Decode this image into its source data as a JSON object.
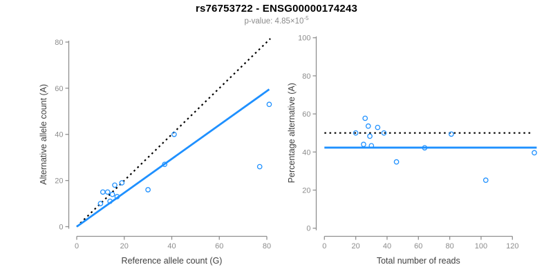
{
  "header": {
    "title": "rs76753722 - ENSG00000174243",
    "pvalue_prefix": "p-value: 4.85×10",
    "pvalue_exponent": "-5"
  },
  "colors": {
    "accent_blue": "#1E90FF",
    "dotted_black": "#000000",
    "axis_line": "#909090",
    "tick_label": "#8c8c8c",
    "axis_title": "#404040",
    "title_text": "#000000",
    "subtitle_text": "#8a8a8a"
  },
  "chart_data": [
    {
      "type": "scatter",
      "name": "allele-counts",
      "xlabel": "Reference allele count (G)",
      "ylabel": "Alternative allele count (A)",
      "xlim": [
        0,
        81.5
      ],
      "ylim": [
        0,
        81.5
      ],
      "xticks": [
        0,
        20,
        40,
        60,
        80
      ],
      "yticks": [
        0,
        20,
        40,
        60,
        80
      ],
      "grid": false,
      "legend": "none",
      "points": [
        [
          10,
          10
        ],
        [
          11,
          15
        ],
        [
          13,
          15
        ],
        [
          14,
          11
        ],
        [
          15,
          14
        ],
        [
          16,
          18
        ],
        [
          17,
          13
        ],
        [
          19,
          19
        ],
        [
          30,
          16
        ],
        [
          37,
          27
        ],
        [
          41,
          40
        ],
        [
          77,
          26
        ],
        [
          81,
          53
        ]
      ],
      "lines": [
        {
          "name": "identity-line",
          "style": "dotted",
          "color": "#000000",
          "x1": 0,
          "y1": 0,
          "x2": 81.5,
          "y2": 81.5
        },
        {
          "name": "fit-line",
          "style": "solid",
          "color": "#1E90FF",
          "x1": 0,
          "y1": 0,
          "x2": 81,
          "y2": 59.5
        }
      ]
    },
    {
      "type": "scatter",
      "name": "percentage-vs-reads",
      "xlabel": "Total number of reads",
      "ylabel": "Percentage alternative (A)",
      "xlim": [
        0,
        135.5
      ],
      "ylim": [
        0,
        100
      ],
      "xticks": [
        0,
        20,
        40,
        60,
        80,
        100,
        120
      ],
      "yticks": [
        0,
        20,
        40,
        60,
        80,
        100
      ],
      "grid": false,
      "legend": "none",
      "points": [
        [
          20,
          50.0
        ],
        [
          25,
          44.0
        ],
        [
          26,
          57.7
        ],
        [
          28,
          53.6
        ],
        [
          29,
          48.3
        ],
        [
          30,
          43.3
        ],
        [
          34,
          52.9
        ],
        [
          38,
          50.0
        ],
        [
          46,
          34.8
        ],
        [
          64,
          42.2
        ],
        [
          81,
          49.4
        ],
        [
          103,
          25.2
        ],
        [
          134,
          39.6
        ]
      ],
      "lines": [
        {
          "name": "null-50pct-line",
          "style": "dotted",
          "color": "#000000",
          "x1": 0,
          "y1": 50,
          "x2": 133,
          "y2": 50
        },
        {
          "name": "mean-pct-line",
          "style": "solid",
          "color": "#1E90FF",
          "x1": 0,
          "y1": 42.3,
          "x2": 135.5,
          "y2": 42.3
        }
      ]
    }
  ]
}
